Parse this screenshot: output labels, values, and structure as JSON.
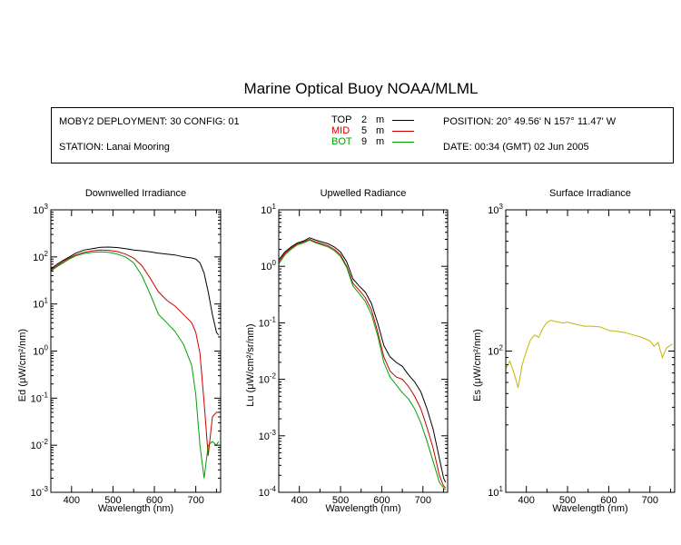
{
  "header": {
    "title": "Marine Optical Buoy NOAA/MLML",
    "deployment": "MOBY2 DEPLOYMENT: 30 CONFIG: 01",
    "station": "STATION: Lanai Mooring",
    "position": "POSITION: 20° 49.56' N   157° 11.47' W",
    "date": "DATE: 00:34 (GMT) 02 Jun 2005",
    "legend": [
      {
        "label": "TOP",
        "depth": "2",
        "unit": "m",
        "color": "#000000"
      },
      {
        "label": "MID",
        "depth": "5",
        "unit": "m",
        "color": "#cc0000"
      },
      {
        "label": "BOT",
        "depth": "9",
        "unit": "m",
        "color": "#00a000"
      }
    ]
  },
  "chart_data": [
    {
      "type": "line",
      "title": "Downwelled Irradiance",
      "xlabel": "Wavelength (nm)",
      "ylabel": "Ed (μW/cm²/nm)",
      "yscale": "log",
      "xlim": [
        350,
        760
      ],
      "ylim": [
        0.001,
        1000
      ],
      "xticks": [
        "400",
        "500",
        "600",
        "700"
      ],
      "yticks": [
        "10-3",
        "10-2",
        "10-1",
        "100",
        "101",
        "102",
        "103"
      ],
      "x": [
        350,
        365,
        380,
        395,
        410,
        430,
        450,
        470,
        490,
        510,
        530,
        550,
        570,
        590,
        610,
        630,
        650,
        670,
        690,
        700,
        710,
        720,
        730,
        740,
        750,
        755
      ],
      "series": [
        {
          "name": "TOP",
          "color": "#000000",
          "values": [
            55,
            70,
            85,
            100,
            120,
            140,
            150,
            160,
            162,
            158,
            150,
            140,
            135,
            128,
            120,
            115,
            110,
            100,
            95,
            90,
            75,
            45,
            18,
            6,
            2.5,
            2.2
          ]
        },
        {
          "name": "MID",
          "color": "#cc0000",
          "values": [
            52,
            65,
            80,
            95,
            110,
            125,
            135,
            140,
            138,
            130,
            115,
            95,
            65,
            35,
            18,
            12,
            9,
            6,
            4,
            2.5,
            0.9,
            0.08,
            0.006,
            0.04,
            0.05,
            0.05
          ]
        },
        {
          "name": "BOT",
          "color": "#00a000",
          "values": [
            50,
            62,
            75,
            90,
            105,
            118,
            125,
            128,
            125,
            115,
            100,
            75,
            40,
            16,
            6,
            4,
            2.6,
            1.4,
            0.5,
            0.12,
            0.01,
            0.002,
            0.01,
            0.012,
            0.01,
            0.012
          ]
        }
      ]
    },
    {
      "type": "line",
      "title": "Upwelled Radiance",
      "xlabel": "Wavelength (nm)",
      "ylabel": "Lu (μW/cm²/sr/nm)",
      "yscale": "log",
      "xlim": [
        350,
        760
      ],
      "ylim": [
        0.0001,
        10
      ],
      "xticks": [
        "400",
        "500",
        "600",
        "700"
      ],
      "yticks": [
        "10-4",
        "10-3",
        "10-2",
        "10-1",
        "100",
        "101"
      ],
      "x": [
        350,
        365,
        380,
        395,
        410,
        425,
        440,
        455,
        470,
        485,
        500,
        515,
        530,
        545,
        560,
        575,
        590,
        605,
        620,
        635,
        650,
        665,
        680,
        695,
        710,
        725,
        740,
        750,
        755
      ],
      "series": [
        {
          "name": "TOP",
          "color": "#000000",
          "values": [
            1.3,
            1.8,
            2.2,
            2.6,
            2.8,
            3.2,
            2.9,
            2.7,
            2.5,
            2.2,
            1.8,
            1.2,
            0.6,
            0.45,
            0.35,
            0.22,
            0.1,
            0.04,
            0.025,
            0.02,
            0.017,
            0.012,
            0.009,
            0.006,
            0.003,
            0.0013,
            0.0004,
            0.00018,
            0.00015
          ]
        },
        {
          "name": "MID",
          "color": "#cc0000",
          "values": [
            1.2,
            1.7,
            2.1,
            2.5,
            2.7,
            3.0,
            2.7,
            2.5,
            2.3,
            2.0,
            1.6,
            1.0,
            0.5,
            0.38,
            0.28,
            0.17,
            0.07,
            0.025,
            0.014,
            0.011,
            0.01,
            0.0075,
            0.005,
            0.003,
            0.0014,
            0.0006,
            0.0002,
            0.00013,
            0.00012
          ]
        },
        {
          "name": "BOT",
          "color": "#00a000",
          "values": [
            1.1,
            1.6,
            2.0,
            2.4,
            2.6,
            2.9,
            2.6,
            2.4,
            2.2,
            1.9,
            1.5,
            0.95,
            0.45,
            0.33,
            0.24,
            0.14,
            0.06,
            0.02,
            0.011,
            0.008,
            0.0058,
            0.0045,
            0.003,
            0.0017,
            0.0008,
            0.00035,
            0.00015,
            0.00012,
            0.00011
          ]
        }
      ]
    },
    {
      "type": "line",
      "title": "Surface Irradiance",
      "xlabel": "Wavelength (nm)",
      "ylabel": "Es (μW/cm²/nm)",
      "yscale": "log",
      "xlim": [
        350,
        760
      ],
      "ylim": [
        10,
        1000
      ],
      "xticks": [
        "400",
        "500",
        "600",
        "700"
      ],
      "yticks": [
        "101",
        "102",
        "103"
      ],
      "x": [
        350,
        360,
        370,
        380,
        390,
        400,
        410,
        420,
        430,
        440,
        450,
        460,
        470,
        480,
        490,
        500,
        520,
        540,
        560,
        580,
        600,
        620,
        640,
        660,
        680,
        700,
        710,
        720,
        730,
        740,
        750,
        755
      ],
      "series": [
        {
          "name": "Es",
          "color": "#c8b400",
          "values": [
            75,
            85,
            70,
            55,
            80,
            100,
            120,
            130,
            125,
            145,
            160,
            165,
            162,
            160,
            158,
            160,
            155,
            150,
            150,
            148,
            140,
            138,
            135,
            130,
            125,
            118,
            108,
            115,
            90,
            105,
            110,
            112
          ]
        }
      ]
    }
  ]
}
